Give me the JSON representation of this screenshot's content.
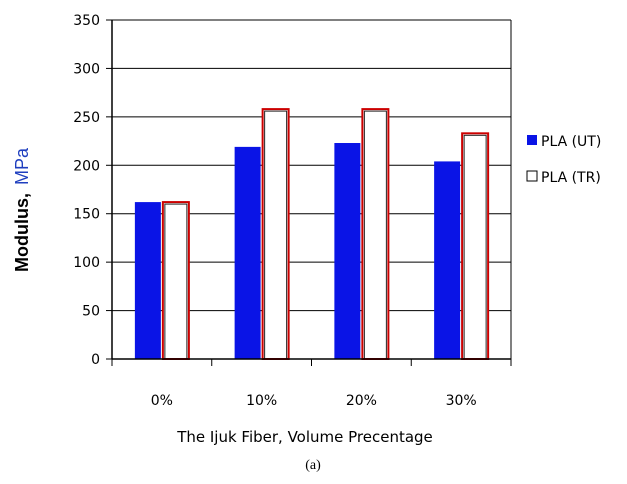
{
  "chart_data": {
    "type": "bar",
    "categories": [
      "0%",
      "10%",
      "20%",
      "30%"
    ],
    "series": [
      {
        "name": "PLA (UT)",
        "values": [
          162,
          219,
          223,
          204
        ],
        "color": "#0a14e6",
        "fill": "solid"
      },
      {
        "name": "PLA (TR)",
        "values": [
          162,
          258,
          258,
          233
        ],
        "color": "#ffffff",
        "border": "#cc0000",
        "fill": "hollow"
      }
    ],
    "ylabel": "Modulus,",
    "ylabel_unit": "MPa",
    "xlabel": "The Ijuk Fiber, Volume Precentage",
    "ylim": [
      0,
      350
    ],
    "yticks": [
      0,
      50,
      100,
      150,
      200,
      250,
      300,
      350
    ],
    "grid": true,
    "legend": "right"
  },
  "caption": "(a)"
}
